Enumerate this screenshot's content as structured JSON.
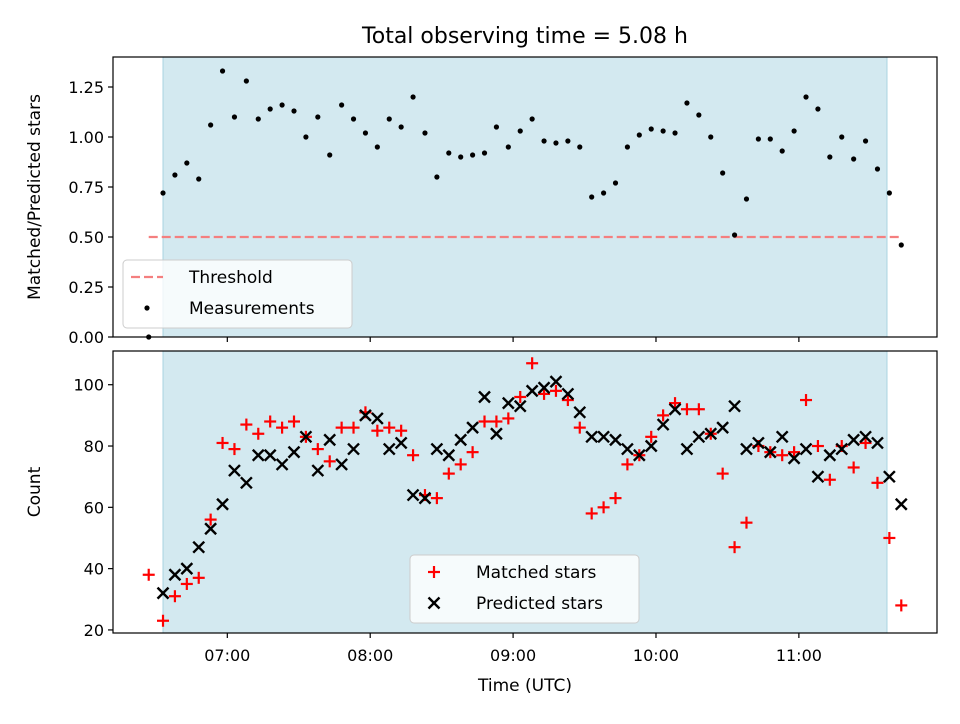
{
  "title": "Total observing time = 5.08 h",
  "chart_data": [
    {
      "type": "scatter",
      "ylabel": "Matched/Predicted stars",
      "ylim": [
        0,
        1.4
      ],
      "yticks": [
        0.0,
        0.25,
        0.5,
        0.75,
        1.0,
        1.25
      ],
      "ytick_labels": [
        "0.00",
        "0.25",
        "0.50",
        "0.75",
        "1.00",
        "1.25"
      ],
      "xlim": [
        "06:12",
        "11:58"
      ],
      "observing_window": [
        "06:33",
        "11:37"
      ],
      "shade_color": "#d3e9f0",
      "threshold": {
        "name": "Threshold",
        "value": 0.5,
        "x_range": [
          "06:27",
          "11:43"
        ],
        "color": "#f47f7f",
        "style": "dashed"
      },
      "legend": {
        "placement": "lower-left",
        "entries": [
          "Threshold",
          "Measurements"
        ]
      },
      "series": [
        {
          "name": "Measurements",
          "color": "#000000",
          "marker": "dot",
          "points": [
            [
              "06:27",
              0.0
            ],
            [
              "06:33",
              0.72
            ],
            [
              "06:38",
              0.81
            ],
            [
              "06:43",
              0.87
            ],
            [
              "06:48",
              0.79
            ],
            [
              "06:53",
              1.06
            ],
            [
              "06:58",
              1.33
            ],
            [
              "07:03",
              1.1
            ],
            [
              "07:08",
              1.28
            ],
            [
              "07:13",
              1.09
            ],
            [
              "07:18",
              1.14
            ],
            [
              "07:23",
              1.16
            ],
            [
              "07:28",
              1.13
            ],
            [
              "07:33",
              1.0
            ],
            [
              "07:38",
              1.1
            ],
            [
              "07:43",
              0.91
            ],
            [
              "07:48",
              1.16
            ],
            [
              "07:53",
              1.09
            ],
            [
              "07:58",
              1.02
            ],
            [
              "08:03",
              0.95
            ],
            [
              "08:08",
              1.09
            ],
            [
              "08:13",
              1.05
            ],
            [
              "08:18",
              1.2
            ],
            [
              "08:23",
              1.02
            ],
            [
              "08:28",
              0.8
            ],
            [
              "08:33",
              0.92
            ],
            [
              "08:38",
              0.9
            ],
            [
              "08:43",
              0.91
            ],
            [
              "08:48",
              0.92
            ],
            [
              "08:53",
              1.05
            ],
            [
              "08:58",
              0.95
            ],
            [
              "09:03",
              1.03
            ],
            [
              "09:08",
              1.09
            ],
            [
              "09:13",
              0.98
            ],
            [
              "09:18",
              0.97
            ],
            [
              "09:23",
              0.98
            ],
            [
              "09:28",
              0.95
            ],
            [
              "09:33",
              0.7
            ],
            [
              "09:38",
              0.72
            ],
            [
              "09:43",
              0.77
            ],
            [
              "09:48",
              0.95
            ],
            [
              "09:53",
              1.01
            ],
            [
              "09:58",
              1.04
            ],
            [
              "10:03",
              1.03
            ],
            [
              "10:08",
              1.02
            ],
            [
              "10:13",
              1.17
            ],
            [
              "10:18",
              1.11
            ],
            [
              "10:23",
              1.0
            ],
            [
              "10:28",
              0.82
            ],
            [
              "10:33",
              0.51
            ],
            [
              "10:38",
              0.69
            ],
            [
              "10:43",
              0.99
            ],
            [
              "10:48",
              0.99
            ],
            [
              "10:53",
              0.93
            ],
            [
              "10:58",
              1.03
            ],
            [
              "11:03",
              1.2
            ],
            [
              "11:08",
              1.14
            ],
            [
              "11:13",
              0.9
            ],
            [
              "11:18",
              1.0
            ],
            [
              "11:23",
              0.89
            ],
            [
              "11:28",
              0.98
            ],
            [
              "11:33",
              0.84
            ],
            [
              "11:38",
              0.72
            ],
            [
              "11:43",
              0.46
            ]
          ]
        }
      ]
    },
    {
      "type": "scatter",
      "xlabel": "Time (UTC)",
      "ylabel": "Count",
      "ylim": [
        19,
        111
      ],
      "yticks": [
        20,
        40,
        60,
        80,
        100
      ],
      "ytick_labels": [
        "20",
        "40",
        "60",
        "80",
        "100"
      ],
      "xlim": [
        "06:12",
        "11:58"
      ],
      "xticks": [
        "07:00",
        "08:00",
        "09:00",
        "10:00",
        "11:00"
      ],
      "xtick_labels": [
        "07:00",
        "08:00",
        "09:00",
        "10:00",
        "11:00"
      ],
      "observing_window": [
        "06:33",
        "11:37"
      ],
      "shade_color": "#d3e9f0",
      "legend": {
        "placement": "lower-center",
        "entries": [
          "Matched stars",
          "Predicted stars"
        ]
      },
      "series": [
        {
          "name": "Matched stars",
          "color": "#ff0000",
          "marker": "plus",
          "points": [
            [
              "06:27",
              38
            ],
            [
              "06:33",
              23
            ],
            [
              "06:38",
              31
            ],
            [
              "06:43",
              35
            ],
            [
              "06:48",
              37
            ],
            [
              "06:53",
              56
            ],
            [
              "06:58",
              81
            ],
            [
              "07:03",
              79
            ],
            [
              "07:08",
              87
            ],
            [
              "07:13",
              84
            ],
            [
              "07:18",
              88
            ],
            [
              "07:23",
              86
            ],
            [
              "07:28",
              88
            ],
            [
              "07:33",
              83
            ],
            [
              "07:38",
              79
            ],
            [
              "07:43",
              75
            ],
            [
              "07:48",
              86
            ],
            [
              "07:53",
              86
            ],
            [
              "07:58",
              91
            ],
            [
              "08:03",
              85
            ],
            [
              "08:08",
              86
            ],
            [
              "08:13",
              85
            ],
            [
              "08:18",
              77
            ],
            [
              "08:23",
              64
            ],
            [
              "08:28",
              63
            ],
            [
              "08:33",
              71
            ],
            [
              "08:38",
              74
            ],
            [
              "08:43",
              78
            ],
            [
              "08:48",
              88
            ],
            [
              "08:53",
              88
            ],
            [
              "08:58",
              89
            ],
            [
              "09:03",
              96
            ],
            [
              "09:08",
              107
            ],
            [
              "09:13",
              97
            ],
            [
              "09:18",
              98
            ],
            [
              "09:23",
              95
            ],
            [
              "09:28",
              86
            ],
            [
              "09:33",
              58
            ],
            [
              "09:38",
              60
            ],
            [
              "09:43",
              63
            ],
            [
              "09:48",
              74
            ],
            [
              "09:53",
              77
            ],
            [
              "09:58",
              83
            ],
            [
              "10:03",
              90
            ],
            [
              "10:08",
              94
            ],
            [
              "10:13",
              92
            ],
            [
              "10:18",
              92
            ],
            [
              "10:23",
              84
            ],
            [
              "10:28",
              71
            ],
            [
              "10:33",
              47
            ],
            [
              "10:38",
              55
            ],
            [
              "10:43",
              80
            ],
            [
              "10:48",
              78
            ],
            [
              "10:53",
              77
            ],
            [
              "10:58",
              78
            ],
            [
              "11:03",
              95
            ],
            [
              "11:08",
              80
            ],
            [
              "11:13",
              69
            ],
            [
              "11:18",
              80
            ],
            [
              "11:23",
              73
            ],
            [
              "11:28",
              81
            ],
            [
              "11:33",
              68
            ],
            [
              "11:38",
              50
            ],
            [
              "11:43",
              28
            ]
          ]
        },
        {
          "name": "Predicted stars",
          "color": "#000000",
          "marker": "cross",
          "points": [
            [
              "06:33",
              32
            ],
            [
              "06:38",
              38
            ],
            [
              "06:43",
              40
            ],
            [
              "06:48",
              47
            ],
            [
              "06:53",
              53
            ],
            [
              "06:58",
              61
            ],
            [
              "07:03",
              72
            ],
            [
              "07:08",
              68
            ],
            [
              "07:13",
              77
            ],
            [
              "07:18",
              77
            ],
            [
              "07:23",
              74
            ],
            [
              "07:28",
              78
            ],
            [
              "07:33",
              83
            ],
            [
              "07:38",
              72
            ],
            [
              "07:43",
              82
            ],
            [
              "07:48",
              74
            ],
            [
              "07:53",
              79
            ],
            [
              "07:58",
              90
            ],
            [
              "08:03",
              89
            ],
            [
              "08:08",
              79
            ],
            [
              "08:13",
              81
            ],
            [
              "08:18",
              64
            ],
            [
              "08:23",
              63
            ],
            [
              "08:28",
              79
            ],
            [
              "08:33",
              77
            ],
            [
              "08:38",
              82
            ],
            [
              "08:43",
              86
            ],
            [
              "08:48",
              96
            ],
            [
              "08:53",
              84
            ],
            [
              "08:58",
              94
            ],
            [
              "09:03",
              93
            ],
            [
              "09:08",
              98
            ],
            [
              "09:13",
              99
            ],
            [
              "09:18",
              101
            ],
            [
              "09:23",
              97
            ],
            [
              "09:28",
              91
            ],
            [
              "09:33",
              83
            ],
            [
              "09:38",
              83
            ],
            [
              "09:43",
              82
            ],
            [
              "09:48",
              79
            ],
            [
              "09:53",
              77
            ],
            [
              "09:58",
              80
            ],
            [
              "10:03",
              87
            ],
            [
              "10:08",
              92
            ],
            [
              "10:13",
              79
            ],
            [
              "10:18",
              83
            ],
            [
              "10:23",
              84
            ],
            [
              "10:28",
              86
            ],
            [
              "10:33",
              93
            ],
            [
              "10:38",
              79
            ],
            [
              "10:43",
              81
            ],
            [
              "10:48",
              78
            ],
            [
              "10:53",
              83
            ],
            [
              "10:58",
              76
            ],
            [
              "11:03",
              79
            ],
            [
              "11:08",
              70
            ],
            [
              "11:13",
              77
            ],
            [
              "11:18",
              79
            ],
            [
              "11:23",
              82
            ],
            [
              "11:28",
              83
            ],
            [
              "11:33",
              81
            ],
            [
              "11:38",
              70
            ],
            [
              "11:43",
              61
            ]
          ]
        }
      ]
    }
  ]
}
